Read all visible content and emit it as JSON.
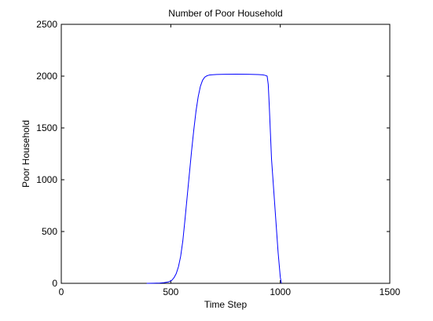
{
  "chart_data": {
    "type": "line",
    "title": "Number of Poor Household",
    "xlabel": "Time Step",
    "ylabel": "Poor Household",
    "xlim": [
      0,
      1500
    ],
    "ylim": [
      0,
      2500
    ],
    "xticks": [
      0,
      500,
      1000,
      1500
    ],
    "yticks": [
      0,
      500,
      1000,
      1500,
      2000,
      2500
    ],
    "grid": false,
    "series": [
      {
        "color": "#0000ff",
        "x": [
          390,
          420,
          450,
          470,
          490,
          505,
          515,
          525,
          535,
          545,
          555,
          565,
          575,
          585,
          595,
          605,
          615,
          625,
          635,
          645,
          655,
          665,
          675,
          690,
          710,
          750,
          800,
          850,
          900,
          920,
          930,
          940,
          945,
          950,
          955,
          960,
          970,
          980,
          990,
          1000,
          1005
        ],
        "y": [
          0,
          1,
          3,
          7,
          14,
          30,
          55,
          95,
          160,
          260,
          410,
          620,
          840,
          1060,
          1280,
          1480,
          1660,
          1800,
          1900,
          1960,
          1990,
          2003,
          2010,
          2013,
          2016,
          2018,
          2019,
          2018,
          2015,
          2012,
          2008,
          2000,
          1920,
          1700,
          1450,
          1200,
          900,
          600,
          300,
          60,
          0
        ]
      }
    ]
  }
}
